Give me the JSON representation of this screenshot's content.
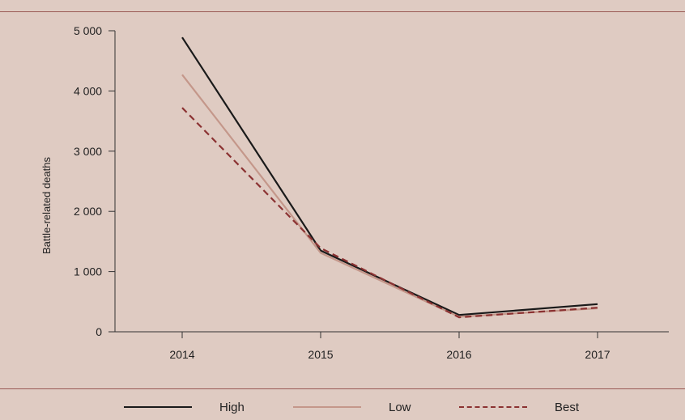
{
  "chart_data": {
    "type": "line",
    "title": "",
    "xlabel": "",
    "ylabel": "Battle-related deaths",
    "x": [
      "2014",
      "2015",
      "2016",
      "2017"
    ],
    "ylim": [
      0,
      5000
    ],
    "yticks": [
      0,
      1000,
      2000,
      3000,
      4000,
      5000
    ],
    "ytick_labels": [
      "0",
      "1 000",
      "2 000",
      "3 000",
      "4 000",
      "5 000"
    ],
    "grid": false,
    "legend_position": "bottom",
    "series": [
      {
        "name": "High",
        "values": [
          4890,
          1350,
          280,
          460
        ],
        "color": "#1a1a1a",
        "style": "solid"
      },
      {
        "name": "Low",
        "values": [
          4270,
          1310,
          250,
          390
        ],
        "color": "#c4978a",
        "style": "solid"
      },
      {
        "name": "Best",
        "values": [
          3720,
          1390,
          240,
          400
        ],
        "color": "#8b3232",
        "style": "dashed"
      }
    ]
  }
}
